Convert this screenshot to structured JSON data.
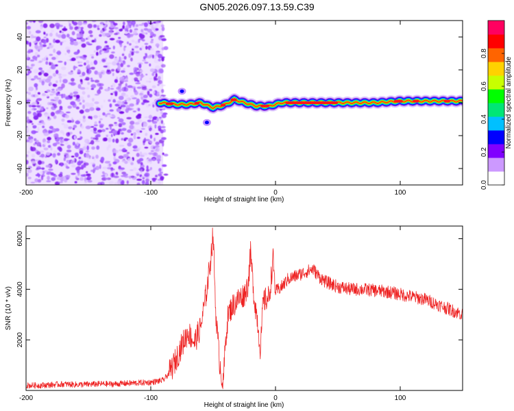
{
  "title": "GN05.2026.097.13.59.C39",
  "chart_data": [
    {
      "type": "heatmap",
      "name": "spectrogram",
      "xlabel": "Height of straight line (km)",
      "ylabel": "Frequency (Hz)",
      "xlim": [
        -200,
        150
      ],
      "ylim": [
        -50,
        50
      ],
      "xticks": [
        -200,
        -100,
        0,
        100
      ],
      "yticks": [
        -40,
        -20,
        0,
        20,
        40
      ],
      "noise_region_x": [
        -200,
        -90
      ],
      "ridge": [
        {
          "x": -93,
          "f": 0
        },
        {
          "x": -80,
          "f": -1
        },
        {
          "x": -70,
          "f": -1
        },
        {
          "x": -60,
          "f": 0
        },
        {
          "x": -50,
          "f": -3
        },
        {
          "x": -40,
          "f": -1
        },
        {
          "x": -33,
          "f": 2
        },
        {
          "x": -25,
          "f": 0
        },
        {
          "x": -15,
          "f": -2
        },
        {
          "x": -5,
          "f": -2
        },
        {
          "x": 5,
          "f": 0
        },
        {
          "x": 40,
          "f": 0
        },
        {
          "x": 80,
          "f": 0
        },
        {
          "x": 100,
          "f": 1
        },
        {
          "x": 150,
          "f": 1
        }
      ],
      "features": [
        {
          "x": -75,
          "f": 7
        },
        {
          "x": -55,
          "f": -12
        }
      ],
      "colorbar": {
        "label": "Normalized spectral amplitude",
        "range": [
          0,
          1
        ],
        "ticks": [
          0.0,
          0.2,
          0.4,
          0.6,
          0.8
        ],
        "tick_labels": [
          "0.0",
          "0.2",
          "0.4",
          "0.6",
          "0.8"
        ],
        "colors": [
          "#ffffff",
          "#cc99ff",
          "#8000ff",
          "#0000ff",
          "#00c0ff",
          "#00e676",
          "#00ff00",
          "#c8ff00",
          "#ffd200",
          "#ff6400",
          "#ff0000",
          "#ff0060"
        ]
      }
    },
    {
      "type": "line",
      "name": "snr",
      "xlabel": "Height of straight line (km)",
      "ylabel": "SNR (10 * v/v)",
      "xlim": [
        -200,
        150
      ],
      "ylim": [
        0,
        6500
      ],
      "xticks": [
        -200,
        -100,
        0,
        100
      ],
      "yticks": [
        2000,
        4000,
        6000
      ],
      "color": "#ee2222",
      "series": [
        {
          "name": "SNR",
          "x": [
            -200,
            -190,
            -180,
            -170,
            -160,
            -150,
            -140,
            -130,
            -120,
            -110,
            -100,
            -90,
            -85,
            -80,
            -75,
            -70,
            -65,
            -60,
            -55,
            -52,
            -50,
            -48,
            -45,
            -42,
            -40,
            -38,
            -35,
            -30,
            -25,
            -22,
            -20,
            -17,
            -15,
            -12,
            -10,
            -5,
            -2,
            0,
            5,
            10,
            20,
            25,
            30,
            35,
            40,
            50,
            60,
            70,
            80,
            90,
            100,
            110,
            120,
            130,
            140,
            150
          ],
          "y": [
            200,
            200,
            220,
            250,
            230,
            240,
            260,
            250,
            280,
            300,
            320,
            400,
            700,
            1200,
            1800,
            2300,
            1900,
            2500,
            4000,
            5200,
            6200,
            3200,
            1200,
            200,
            2000,
            3000,
            3300,
            3600,
            3800,
            4200,
            5400,
            3600,
            3000,
            1600,
            3500,
            3700,
            5200,
            3900,
            4100,
            4400,
            4600,
            4700,
            4800,
            4500,
            4300,
            4100,
            4000,
            4000,
            3950,
            3900,
            3800,
            3700,
            3600,
            3400,
            3200,
            3000
          ]
        }
      ]
    }
  ]
}
